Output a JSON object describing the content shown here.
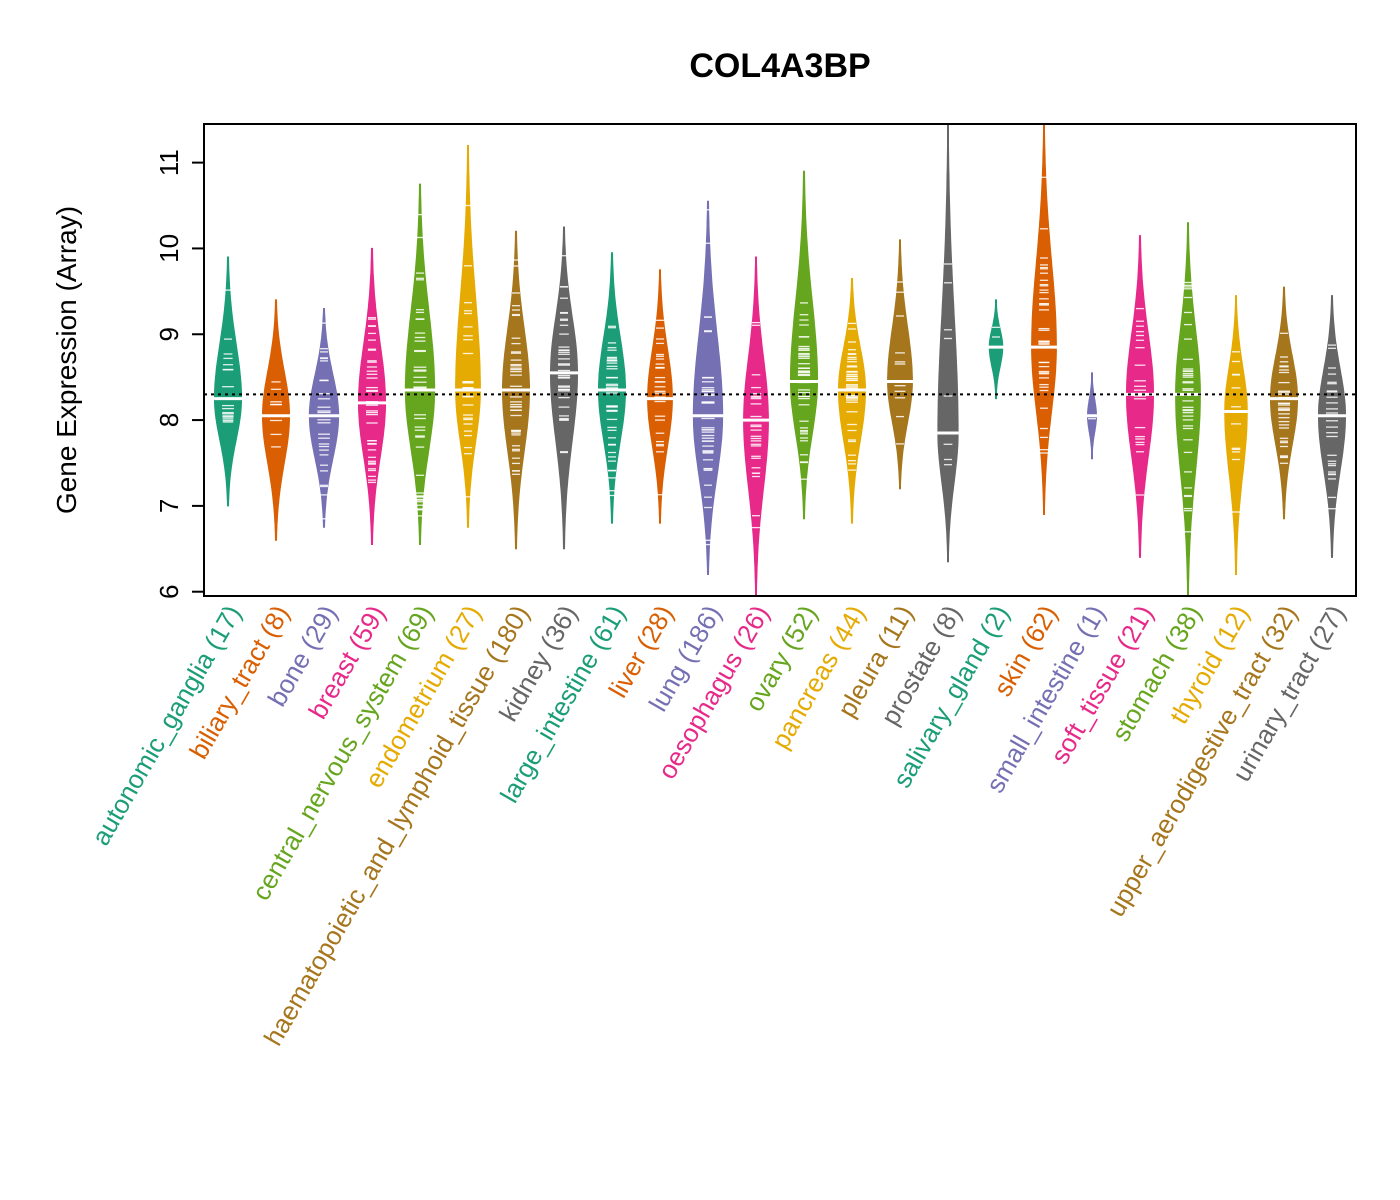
{
  "chart_data": {
    "type": "beanplot",
    "title": "COL4A3BP",
    "xlabel": "",
    "ylabel": "Gene Expression (Array)",
    "ylim": [
      5.95,
      11.45
    ],
    "yticks": [
      6,
      7,
      8,
      9,
      10,
      11
    ],
    "reference_line": 8.3,
    "categories": [
      {
        "name": "autonomic_ganglia",
        "n": 17,
        "label": "autonomic_ganglia (17)",
        "color": "#1b9e77",
        "median": 8.25,
        "min": 7.0,
        "max": 9.9,
        "width": 0.6
      },
      {
        "name": "biliary_tract",
        "n": 8,
        "label": "biliary_tract (8)",
        "color": "#d95f02",
        "median": 8.05,
        "min": 6.6,
        "max": 9.4,
        "width": 0.6
      },
      {
        "name": "bone",
        "n": 29,
        "label": "bone (29)",
        "color": "#7570b3",
        "median": 8.05,
        "min": 6.75,
        "max": 9.3,
        "width": 0.65
      },
      {
        "name": "breast",
        "n": 59,
        "label": "breast (59)",
        "color": "#e7298a",
        "median": 8.2,
        "min": 6.55,
        "max": 10.0,
        "width": 0.6
      },
      {
        "name": "central_nervous_system",
        "n": 69,
        "label": "central_nervous_system (69)",
        "color": "#66a61e",
        "median": 8.35,
        "min": 6.55,
        "max": 10.75,
        "width": 0.65
      },
      {
        "name": "endometrium",
        "n": 27,
        "label": "endometrium (27)",
        "color": "#e6ab02",
        "median": 8.35,
        "min": 6.75,
        "max": 11.2,
        "width": 0.55
      },
      {
        "name": "haematopoietic_and_lymphoid_tissue",
        "n": 180,
        "label": "haematopoietic_and_lymphoid_tissue (180)",
        "color": "#a6761d",
        "median": 8.35,
        "min": 6.5,
        "max": 10.2,
        "width": 0.6
      },
      {
        "name": "kidney",
        "n": 36,
        "label": "kidney (36)",
        "color": "#666666",
        "median": 8.55,
        "min": 6.5,
        "max": 10.25,
        "width": 0.6
      },
      {
        "name": "large_intestine",
        "n": 61,
        "label": "large_intestine (61)",
        "color": "#1b9e77",
        "median": 8.35,
        "min": 6.8,
        "max": 9.95,
        "width": 0.6
      },
      {
        "name": "liver",
        "n": 28,
        "label": "liver (28)",
        "color": "#d95f02",
        "median": 8.25,
        "min": 6.8,
        "max": 9.75,
        "width": 0.55
      },
      {
        "name": "lung",
        "n": 186,
        "label": "lung (186)",
        "color": "#7570b3",
        "median": 8.05,
        "min": 6.2,
        "max": 10.55,
        "width": 0.65
      },
      {
        "name": "oesophagus",
        "n": 26,
        "label": "oesophagus (26)",
        "color": "#e7298a",
        "median": 8.0,
        "min": 5.95,
        "max": 9.9,
        "width": 0.55
      },
      {
        "name": "ovary",
        "n": 52,
        "label": "ovary (52)",
        "color": "#66a61e",
        "median": 8.45,
        "min": 6.85,
        "max": 10.9,
        "width": 0.6
      },
      {
        "name": "pancreas",
        "n": 44,
        "label": "pancreas (44)",
        "color": "#e6ab02",
        "median": 8.35,
        "min": 6.8,
        "max": 9.65,
        "width": 0.6
      },
      {
        "name": "pleura",
        "n": 11,
        "label": "pleura (11)",
        "color": "#a6761d",
        "median": 8.45,
        "min": 7.2,
        "max": 10.1,
        "width": 0.55
      },
      {
        "name": "prostate",
        "n": 8,
        "label": "prostate (8)",
        "color": "#666666",
        "median": 7.85,
        "min": 6.35,
        "max": 11.45,
        "width": 0.45
      },
      {
        "name": "salivary_gland",
        "n": 2,
        "label": "salivary_gland (2)",
        "color": "#1b9e77",
        "median": 8.85,
        "min": 8.25,
        "max": 9.4,
        "width": 0.3
      },
      {
        "name": "skin",
        "n": 62,
        "label": "skin (62)",
        "color": "#d95f02",
        "median": 8.85,
        "min": 6.9,
        "max": 11.45,
        "width": 0.55
      },
      {
        "name": "small_intestine",
        "n": 1,
        "label": "small_intestine (1)",
        "color": "#7570b3",
        "median": 8.05,
        "min": 7.55,
        "max": 8.55,
        "width": 0.2
      },
      {
        "name": "soft_tissue",
        "n": 21,
        "label": "soft_tissue (21)",
        "color": "#e7298a",
        "median": 8.3,
        "min": 6.4,
        "max": 10.15,
        "width": 0.6
      },
      {
        "name": "stomach",
        "n": 38,
        "label": "stomach (38)",
        "color": "#66a61e",
        "median": 8.3,
        "min": 5.95,
        "max": 10.3,
        "width": 0.55
      },
      {
        "name": "thyroid",
        "n": 12,
        "label": "thyroid (12)",
        "color": "#e6ab02",
        "median": 8.1,
        "min": 6.2,
        "max": 9.45,
        "width": 0.5
      },
      {
        "name": "upper_aerodigestive_tract",
        "n": 32,
        "label": "upper_aerodigestive_tract (32)",
        "color": "#a6761d",
        "median": 8.25,
        "min": 6.85,
        "max": 9.55,
        "width": 0.6
      },
      {
        "name": "urinary_tract",
        "n": 27,
        "label": "urinary_tract (27)",
        "color": "#666666",
        "median": 8.05,
        "min": 6.4,
        "max": 9.45,
        "width": 0.6
      }
    ]
  }
}
